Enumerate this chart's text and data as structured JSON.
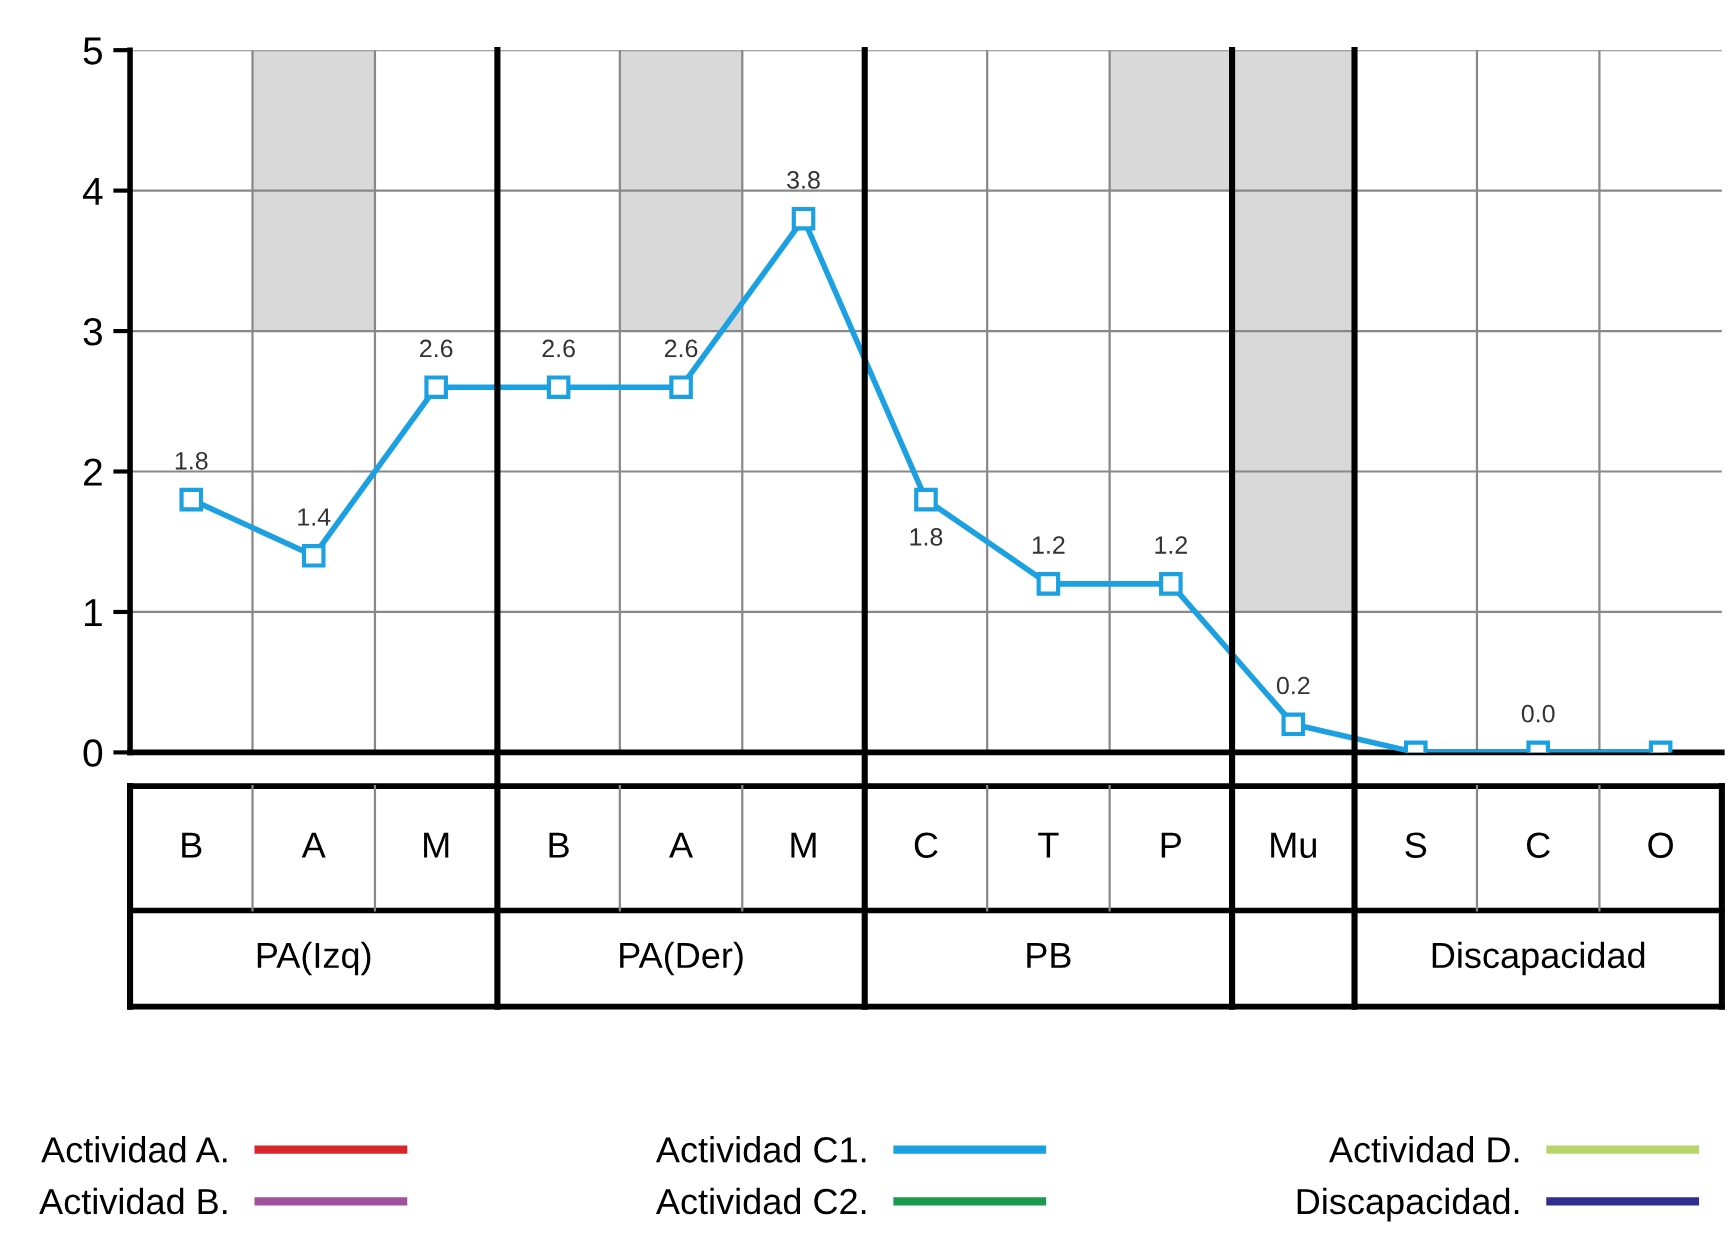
{
  "chart_data": {
    "type": "line",
    "categories": [
      "B",
      "A",
      "M",
      "B",
      "A",
      "M",
      "C",
      "T",
      "P",
      "Mu",
      "S",
      "C",
      "O"
    ],
    "ylim": [
      0,
      5
    ],
    "yticks": [
      0,
      1,
      2,
      3,
      4,
      5
    ],
    "grid": true,
    "legend": "bottom",
    "tick_labels": "y",
    "annotations": [
      "PA(Izq)",
      "PA(Der)",
      "PB",
      "Discapacidad"
    ],
    "series": [
      {
        "type": "bar",
        "color": "#d9d9d9",
        "base": [
          null,
          3,
          null,
          null,
          3,
          null,
          null,
          null,
          4,
          1,
          null,
          null,
          null
        ],
        "values": [
          null,
          2,
          null,
          null,
          2,
          null,
          null,
          null,
          1,
          4,
          null,
          null,
          null
        ]
      },
      {
        "name": "Actividad A.",
        "color": "#d9262b",
        "values": [
          null,
          null,
          null,
          null,
          null,
          null,
          null,
          null,
          null,
          null,
          null,
          null,
          null
        ]
      },
      {
        "name": "Actividad B.",
        "color": "#a0529e",
        "values": [
          null,
          null,
          null,
          null,
          null,
          null,
          null,
          null,
          null,
          null,
          null,
          null,
          null
        ]
      },
      {
        "name": "Actividad C1.",
        "color": "#1ba1e2",
        "marker": "square",
        "values": [
          1.8,
          1.4,
          2.6,
          2.6,
          2.6,
          3.8,
          1.8,
          1.2,
          1.2,
          0.2,
          0.0,
          0.0,
          0.0
        ],
        "value_labels": [
          "1.8",
          "1.4",
          "2.6",
          "2.6",
          "2.6",
          "3.8",
          "1.8",
          "1.2",
          "1.2",
          "0.2",
          null,
          "0.0",
          null
        ]
      },
      {
        "name": "Actividad C2.",
        "color": "#1a9b4b",
        "values": [
          null,
          null,
          null,
          null,
          null,
          null,
          null,
          null,
          null,
          null,
          null,
          null,
          null
        ]
      },
      {
        "name": "Actividad D.",
        "color": "#b5d56a",
        "values": [
          null,
          null,
          null,
          null,
          null,
          null,
          null,
          null,
          null,
          null,
          null,
          null,
          null
        ]
      },
      {
        "name": "Discapacidad.",
        "color": "#2e2f8f",
        "values": [
          null,
          null,
          null,
          null,
          null,
          null,
          null,
          null,
          null,
          null,
          null,
          null,
          null
        ]
      }
    ]
  }
}
